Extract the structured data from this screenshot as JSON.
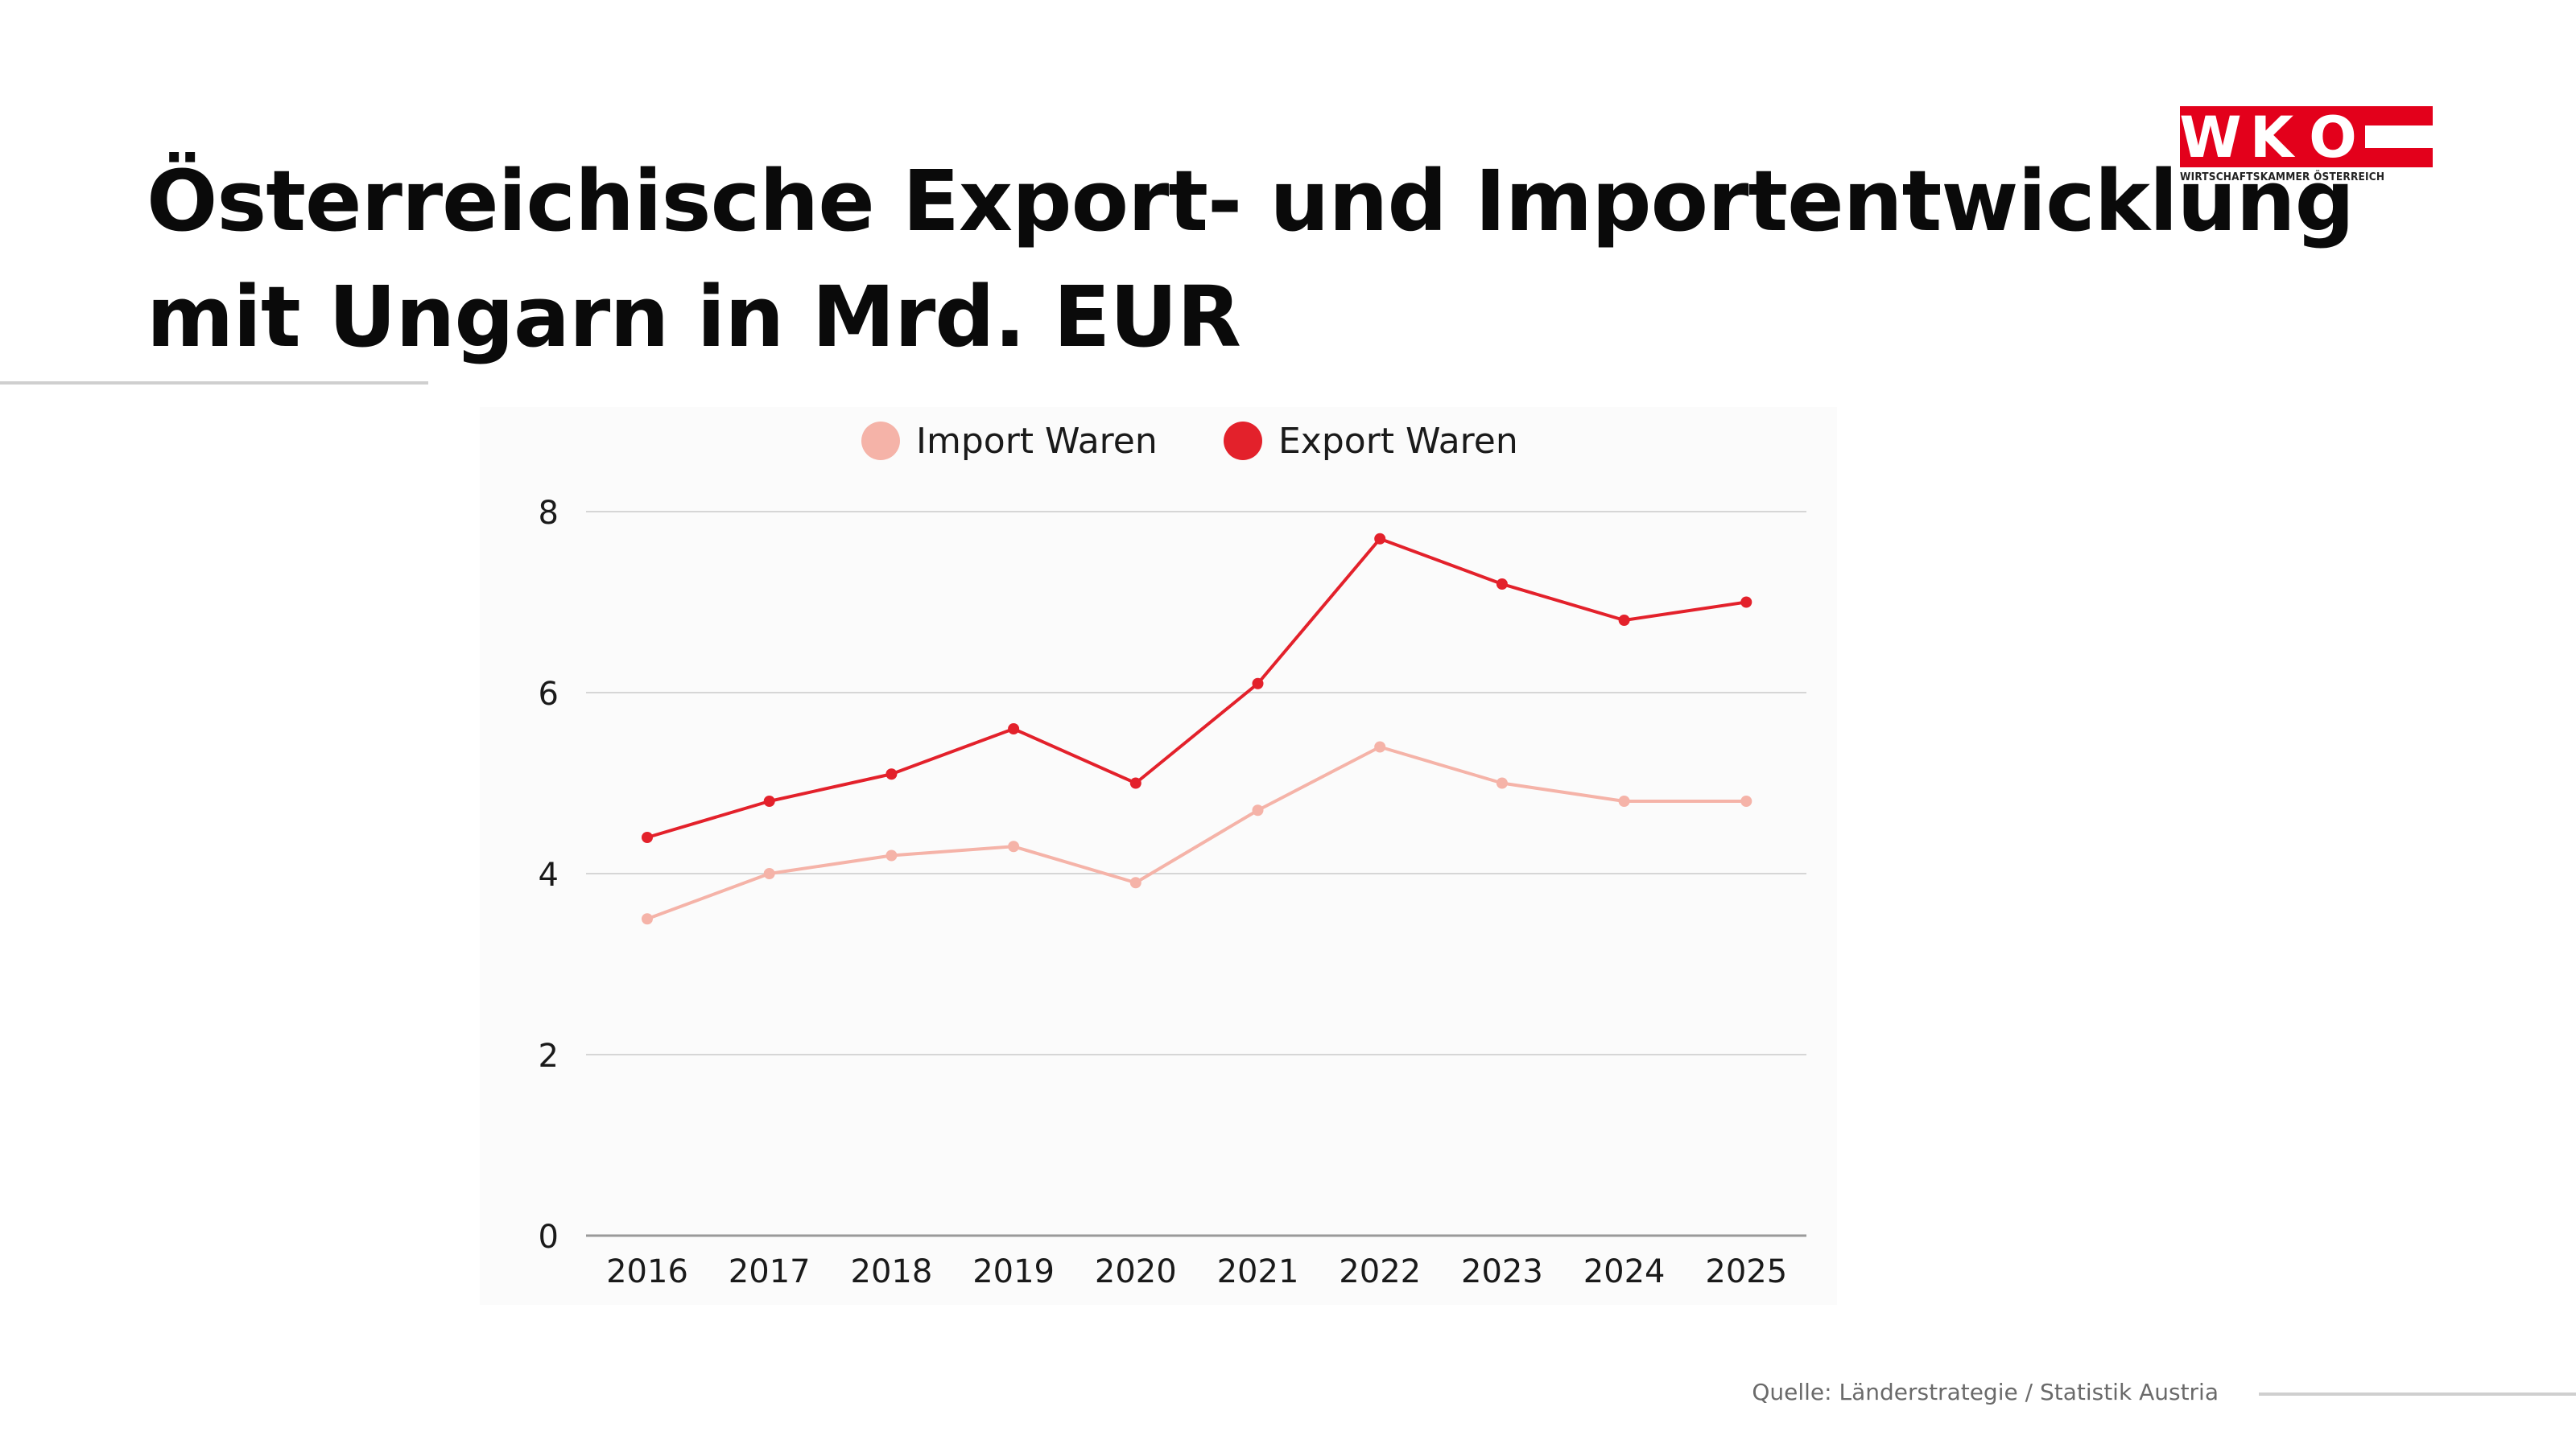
{
  "page": {
    "title_line1": "Österreichische Export- und Importentwicklung",
    "title_line2": "mit Ungarn in Mrd. EUR",
    "source": "Quelle: Länderstrategie / Statistik Austria"
  },
  "logo": {
    "letters": [
      "W",
      "K",
      "O"
    ],
    "subtitle": "WIRTSCHAFTSKAMMER ÖSTERREICH",
    "colors": {
      "red": "#e3001b",
      "white": "#ffffff"
    }
  },
  "chart_data": {
    "type": "line",
    "title": "Österreichische Export- und Importentwicklung mit Ungarn in Mrd. EUR",
    "xlabel": "",
    "ylabel": "",
    "categories": [
      "2016",
      "2017",
      "2018",
      "2019",
      "2020",
      "2021",
      "2022",
      "2023",
      "2024",
      "2025"
    ],
    "ylim": [
      0,
      8
    ],
    "yticks": [
      0,
      2,
      4,
      6,
      8
    ],
    "grid": true,
    "legend_position": "top",
    "series": [
      {
        "name": "Import Waren",
        "color": "#f5b3a8",
        "values": [
          3.5,
          4.0,
          4.2,
          4.3,
          3.9,
          4.7,
          5.4,
          5.0,
          4.8,
          4.8
        ]
      },
      {
        "name": "Export Waren",
        "color": "#e3212b",
        "values": [
          4.4,
          4.8,
          5.1,
          5.6,
          5.0,
          6.1,
          7.7,
          7.2,
          6.8,
          7.0
        ]
      }
    ]
  }
}
